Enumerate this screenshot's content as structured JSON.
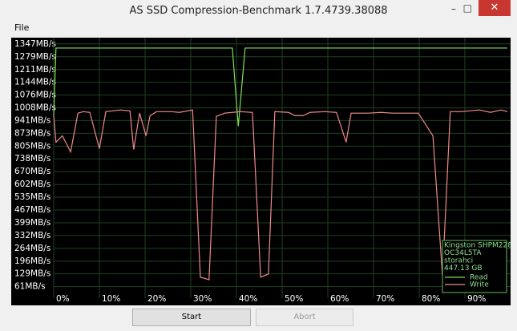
{
  "window": {
    "title": "AS SSD Compression-Benchmark 1.7.4739.38088",
    "menu": [
      "File"
    ],
    "buttons": [
      "Start",
      "Abort"
    ]
  },
  "chart_data": {
    "type": "line",
    "ylim": [
      0,
      1380
    ],
    "yticks": [
      {
        "value": 1347,
        "label": "1347MB/s"
      },
      {
        "value": 1279,
        "label": "1279MB/s"
      },
      {
        "value": 1211,
        "label": "1211MB/s"
      },
      {
        "value": 1144,
        "label": "1144MB/s"
      },
      {
        "value": 1076,
        "label": "1076MB/s"
      },
      {
        "value": 1008,
        "label": "1008MB/s"
      },
      {
        "value": 941,
        "label": "941MB/s"
      },
      {
        "value": 873,
        "label": "873MB/s"
      },
      {
        "value": 805,
        "label": "805MB/s"
      },
      {
        "value": 738,
        "label": "738MB/s"
      },
      {
        "value": 670,
        "label": "670MB/s"
      },
      {
        "value": 602,
        "label": "602MB/s"
      },
      {
        "value": 535,
        "label": "535MB/s"
      },
      {
        "value": 467,
        "label": "467MB/s"
      },
      {
        "value": 399,
        "label": "399MB/s"
      },
      {
        "value": 332,
        "label": "332MB/s"
      },
      {
        "value": 264,
        "label": "264MB/s"
      },
      {
        "value": 196,
        "label": "196MB/s"
      },
      {
        "value": 129,
        "label": "129MB/s"
      },
      {
        "value": 61,
        "label": "61MB/s"
      }
    ],
    "xlim": [
      0,
      100
    ],
    "xticks": [
      {
        "value": 0,
        "label": "0%"
      },
      {
        "value": 10,
        "label": "10%"
      },
      {
        "value": 20,
        "label": "20%"
      },
      {
        "value": 30,
        "label": "30%"
      },
      {
        "value": 40,
        "label": "40%"
      },
      {
        "value": 50,
        "label": "50%"
      },
      {
        "value": 60,
        "label": "60%"
      },
      {
        "value": 70,
        "label": "70%"
      },
      {
        "value": 80,
        "label": "80%"
      },
      {
        "value": 90,
        "label": "90%"
      }
    ],
    "grid": true,
    "annotations": [
      "Kingston SHPM228",
      "OC34L5TA",
      "storahci",
      "447.13 GB"
    ],
    "legend": "lower right",
    "series": [
      {
        "name": "Read",
        "color": "#7ee05a",
        "x": [
          0,
          0.5,
          39.1,
          40.4,
          41.9,
          99.3
        ],
        "values": [
          967,
          1325,
          1325,
          911,
          1325,
          1325
        ]
      },
      {
        "name": "Write",
        "color": "#f08a8a",
        "x": [
          0,
          0.5,
          1.9,
          3.7,
          5.3,
          6.5,
          7.9,
          10,
          11.4,
          14.6,
          16.7,
          17.5,
          18.8,
          20.2,
          21.1,
          22.5,
          25.8,
          27.5,
          30.4,
          32.1,
          34,
          35.6,
          37.4,
          39.1,
          40.9,
          43.5,
          45.3,
          47,
          48.4,
          51.4,
          52.8,
          54.6,
          56.1,
          59.3,
          61.9,
          64,
          65.1,
          68.9,
          71.6,
          74.2,
          76.8,
          79.8,
          83,
          85.1,
          86.8,
          89.1,
          93.2,
          95.6,
          97.9,
          99.3
        ],
        "values": [
          967,
          826,
          860,
          775,
          980,
          988,
          984,
          792,
          988,
          997,
          992,
          788,
          980,
          860,
          967,
          988,
          988,
          984,
          997,
          111,
          98,
          963,
          980,
          984,
          988,
          984,
          111,
          128,
          988,
          984,
          967,
          967,
          984,
          988,
          984,
          826,
          980,
          980,
          984,
          980,
          980,
          980,
          860,
          115,
          988,
          988,
          997,
          984,
          997,
          988
        ]
      }
    ]
  }
}
